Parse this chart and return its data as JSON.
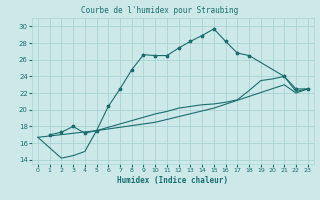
{
  "title": "Courbe de l'humidex pour Straubing",
  "xlabel": "Humidex (Indice chaleur)",
  "ylabel": "",
  "xlim": [
    -0.5,
    23.5
  ],
  "ylim": [
    13.5,
    31
  ],
  "yticks": [
    14,
    16,
    18,
    20,
    22,
    24,
    26,
    28,
    30
  ],
  "xticks": [
    0,
    1,
    2,
    3,
    4,
    5,
    6,
    7,
    8,
    9,
    10,
    11,
    12,
    13,
    14,
    15,
    16,
    17,
    18,
    19,
    20,
    21,
    22,
    23
  ],
  "bg_color": "#cce8e8",
  "line_color": "#1a6e6e",
  "grid_color": "#aad4d4",
  "line1_x": [
    1,
    2,
    3,
    4,
    5,
    6,
    7,
    8,
    9,
    10,
    11,
    12,
    13,
    14,
    15,
    16,
    17,
    18,
    21,
    22,
    23
  ],
  "line1_y": [
    17.0,
    17.3,
    18.0,
    17.2,
    17.5,
    20.4,
    22.5,
    24.8,
    26.6,
    26.5,
    26.5,
    27.4,
    28.2,
    28.9,
    29.7,
    28.2,
    26.8,
    26.5,
    24.0,
    22.5,
    22.5
  ],
  "line2_x": [
    0,
    2,
    3,
    4,
    5,
    10,
    11,
    12,
    13,
    14,
    15,
    16,
    17,
    18,
    19,
    20,
    21,
    22,
    23
  ],
  "line2_y": [
    16.7,
    14.2,
    14.5,
    15.0,
    17.5,
    19.5,
    19.8,
    20.2,
    20.4,
    20.6,
    20.7,
    20.9,
    21.2,
    22.3,
    23.5,
    23.7,
    24.0,
    22.2,
    22.5
  ],
  "line3_x": [
    0,
    5,
    10,
    15,
    21,
    22,
    23
  ],
  "line3_y": [
    16.7,
    17.5,
    18.5,
    20.2,
    23.0,
    22.0,
    22.5
  ]
}
